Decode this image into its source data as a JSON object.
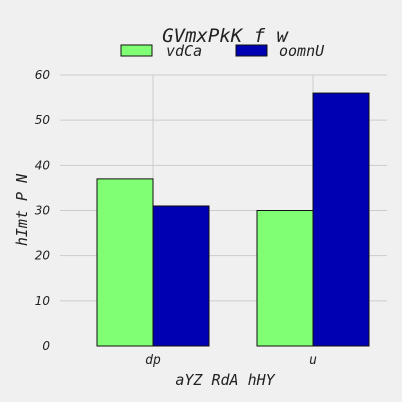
{
  "chart_data": {
    "type": "bar",
    "title": "GVmxPkK f w",
    "xlabel": "aYZ RdA  hHY",
    "ylabel": "hImt  P N",
    "categories": [
      "dp",
      "u"
    ],
    "series": [
      {
        "name": "vdCa",
        "values": [
          37,
          30
        ],
        "color": "#80ff74"
      },
      {
        "name": "oomnU",
        "values": [
          31,
          56
        ],
        "color": "#0000b3"
      }
    ],
    "ylim": [
      0,
      60
    ],
    "yticks": [
      0,
      10,
      20,
      30,
      40,
      50,
      60
    ],
    "grid": true,
    "legend": "top-center"
  }
}
